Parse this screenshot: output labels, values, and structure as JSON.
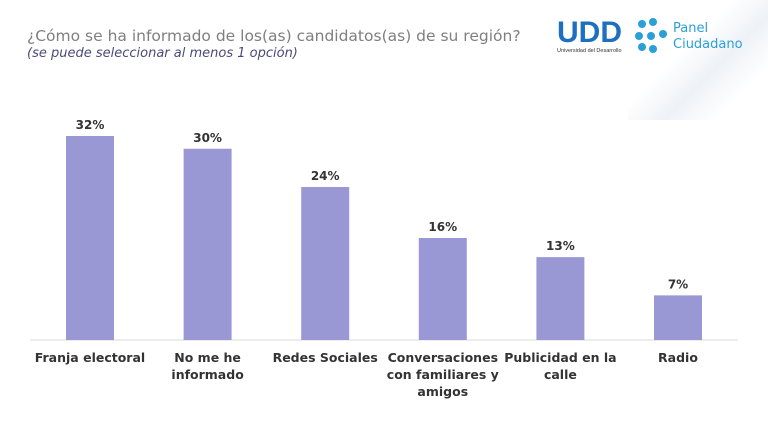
{
  "header": {
    "title": "¿Cómo se ha informado de los(as) candidatos(as) de su región?",
    "subtitle": "(se puede seleccionar al menos 1 opción)",
    "logo_udd": "UDD",
    "logo_udd_sub": "Universidad del Desarrollo",
    "logo_panel": "Panel",
    "logo_panel2": "Ciudadano"
  },
  "colors": {
    "bar": "#9a98d4",
    "udd": "#1f6fc0",
    "panel": "#2a9fd8"
  },
  "chart_data": {
    "type": "bar",
    "title": "¿Cómo se ha informado de los(as) candidatos(as) de su región?",
    "categories": [
      [
        "Franja electoral"
      ],
      [
        "No me he",
        "informado"
      ],
      [
        "Redes Sociales"
      ],
      [
        "Conversaciones",
        "con familiares y",
        "amigos"
      ],
      [
        "Publicidad en la",
        "calle"
      ],
      [
        "Radio"
      ]
    ],
    "values": [
      32,
      30,
      24,
      16,
      13,
      7
    ],
    "labels": [
      "32%",
      "30%",
      "24%",
      "16%",
      "13%",
      "7%"
    ],
    "ylim": [
      0,
      35
    ],
    "grid": false,
    "legend": "none"
  }
}
